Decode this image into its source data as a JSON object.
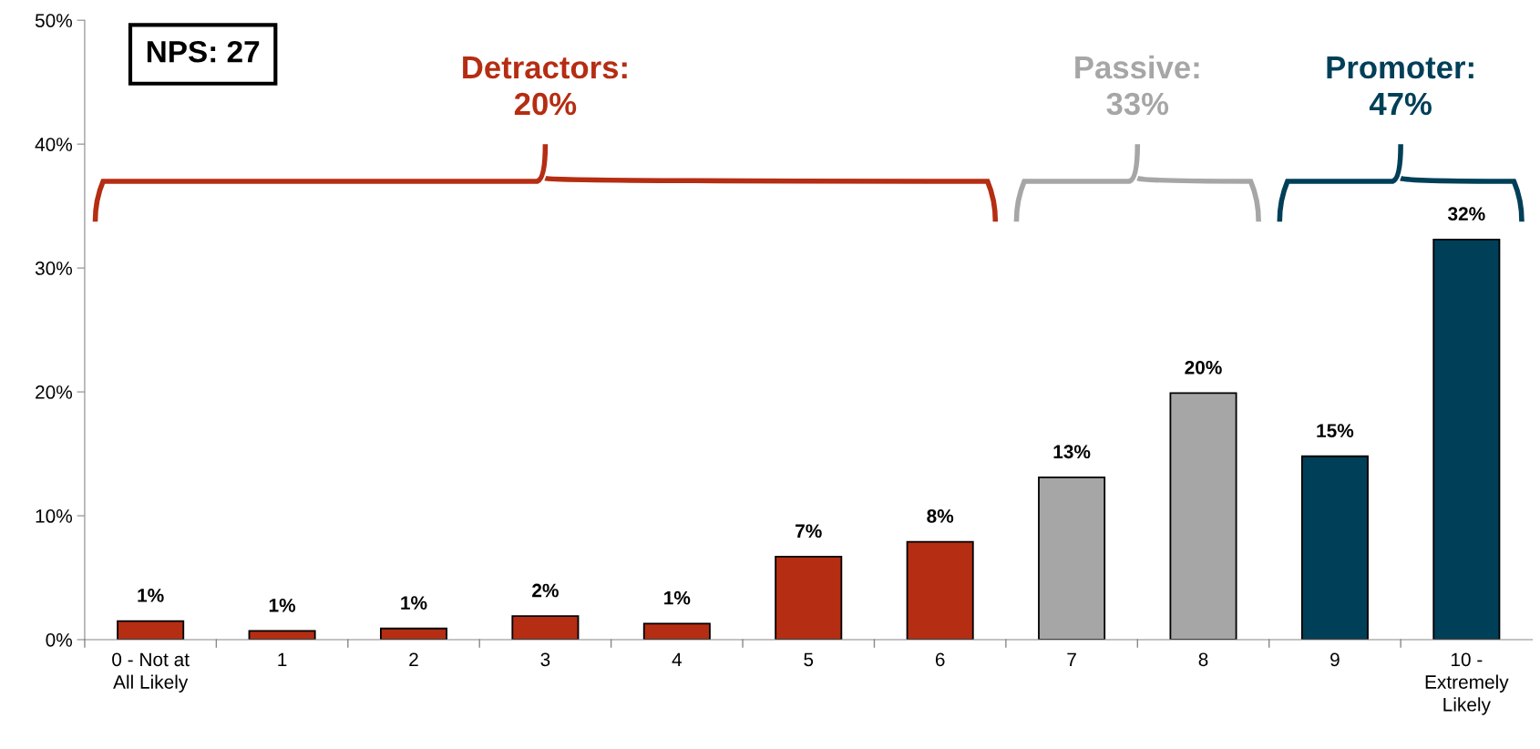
{
  "chart_data": {
    "type": "bar",
    "categories": [
      "0 - Not at\nAll Likely",
      "1",
      "2",
      "3",
      "4",
      "5",
      "6",
      "7",
      "8",
      "9",
      "10 -\nExtremely\nLikely"
    ],
    "values": [
      1.5,
      0.7,
      0.9,
      1.9,
      1.3,
      6.7,
      7.9,
      13.1,
      19.9,
      14.8,
      32.3
    ],
    "value_labels": [
      "1%",
      "1%",
      "1%",
      "2%",
      "1%",
      "7%",
      "8%",
      "13%",
      "20%",
      "15%",
      "32%"
    ],
    "colors": [
      "#b52d12",
      "#b52d12",
      "#b52d12",
      "#b52d12",
      "#b52d12",
      "#b52d12",
      "#b52d12",
      "#a6a6a6",
      "#a6a6a6",
      "#003f58",
      "#003f58"
    ],
    "ylim": [
      0,
      50
    ],
    "yticks": [
      {
        "value": 0,
        "label": "0%"
      },
      {
        "value": 10,
        "label": "10%"
      },
      {
        "value": 20,
        "label": "20%"
      },
      {
        "value": 30,
        "label": "30%"
      },
      {
        "value": 40,
        "label": "40%"
      },
      {
        "value": 50,
        "label": "50%"
      }
    ],
    "annotations": [
      "NPS: 27",
      "Detractors:\n20%",
      "Passive:\n33%",
      "Promoter:\n47%"
    ],
    "grid": false,
    "legend": false
  }
}
